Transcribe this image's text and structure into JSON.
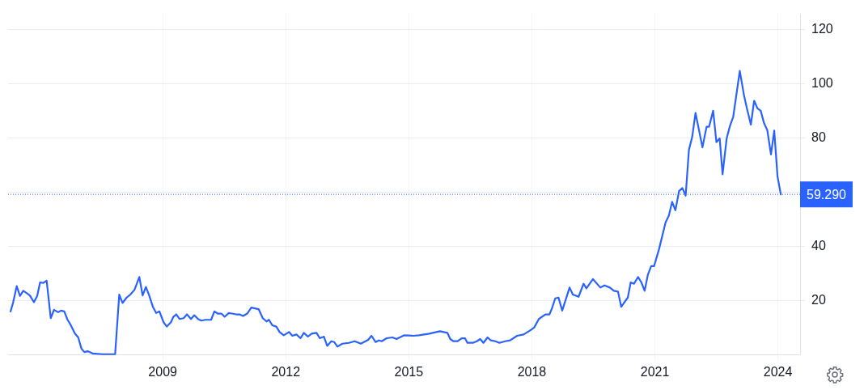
{
  "chart_data": {
    "type": "line",
    "xlim": [
      2005.23,
      2024.54
    ],
    "xticks": [
      2009,
      2012,
      2015,
      2018,
      2021,
      2024
    ],
    "ylim": [
      0,
      125.7
    ],
    "yticks": [
      20,
      40,
      {
        "value": 60,
        "label": null
      },
      80,
      100,
      120
    ],
    "grid": true,
    "legend": false,
    "marker": "none",
    "line_style": "solid",
    "ref_lines": [
      {
        "axis": "y",
        "value": 59.29,
        "label": "59.290",
        "color": "#2962ff",
        "line_style": "dotted"
      }
    ],
    "series": [
      {
        "color": "#2962ff",
        "x": [
          2005.29,
          2005.35,
          2005.44,
          2005.52,
          2005.6,
          2005.68,
          2005.76,
          2005.86,
          2005.94,
          2006.01,
          2006.09,
          2006.17,
          2006.27,
          2006.35,
          2006.45,
          2006.52,
          2006.6,
          2006.68,
          2006.76,
          2006.86,
          2006.94,
          2007.02,
          2007.09,
          2007.17,
          2007.29,
          2007.53,
          2007.84,
          2007.94,
          2008.02,
          2008.12,
          2008.21,
          2008.31,
          2008.43,
          2008.51,
          2008.59,
          2008.67,
          2008.76,
          2008.84,
          2008.92,
          2009.02,
          2009.1,
          2009.2,
          2009.26,
          2009.33,
          2009.41,
          2009.51,
          2009.59,
          2009.69,
          2009.77,
          2009.86,
          2009.94,
          2010.04,
          2010.18,
          2010.26,
          2010.34,
          2010.43,
          2010.51,
          2010.61,
          2010.69,
          2010.79,
          2010.87,
          2010.96,
          2011.06,
          2011.16,
          2011.34,
          2011.44,
          2011.53,
          2011.59,
          2011.67,
          2011.77,
          2011.85,
          2011.95,
          2012.08,
          2012.16,
          2012.26,
          2012.36,
          2012.44,
          2012.54,
          2012.63,
          2012.75,
          2012.83,
          2012.93,
          2013.01,
          2013.11,
          2013.18,
          2013.26,
          2013.38,
          2013.54,
          2013.68,
          2013.83,
          2014.01,
          2014.09,
          2014.19,
          2014.27,
          2014.34,
          2014.46,
          2014.6,
          2014.7,
          2014.89,
          2015.11,
          2015.25,
          2015.5,
          2015.76,
          2015.94,
          2016.01,
          2016.09,
          2016.19,
          2016.29,
          2016.37,
          2016.43,
          2016.56,
          2016.66,
          2016.74,
          2016.82,
          2016.92,
          2017.0,
          2017.11,
          2017.21,
          2017.35,
          2017.47,
          2017.64,
          2017.8,
          2017.98,
          2018.06,
          2018.17,
          2018.33,
          2018.43,
          2018.49,
          2018.57,
          2018.65,
          2018.74,
          2018.92,
          2019.0,
          2019.14,
          2019.26,
          2019.33,
          2019.49,
          2019.67,
          2019.77,
          2019.9,
          2020.0,
          2020.1,
          2020.18,
          2020.34,
          2020.41,
          2020.49,
          2020.59,
          2020.67,
          2020.75,
          2020.83,
          2020.91,
          2020.98,
          2021.1,
          2021.26,
          2021.34,
          2021.42,
          2021.5,
          2021.59,
          2021.67,
          2021.75,
          2021.83,
          2021.91,
          2021.99,
          2022.16,
          2022.26,
          2022.32,
          2022.42,
          2022.5,
          2022.58,
          2022.65,
          2022.75,
          2022.83,
          2022.91,
          2023.07,
          2023.17,
          2023.24,
          2023.34,
          2023.42,
          2023.5,
          2023.58,
          2023.66,
          2023.74,
          2023.83,
          2023.91,
          2023.99,
          2024.07
        ],
        "values": [
          16.1,
          19.2,
          25.4,
          21.8,
          23.7,
          22.9,
          22.0,
          19.5,
          21.8,
          26.8,
          26.6,
          27.4,
          13.6,
          16.7,
          15.8,
          16.4,
          16.1,
          13.0,
          11.0,
          7.9,
          6.5,
          2.3,
          1.1,
          1.4,
          0.6,
          0.3,
          0.3,
          22.3,
          19.2,
          21.2,
          22.3,
          24.0,
          28.8,
          22.0,
          25.1,
          22.0,
          17.8,
          15.5,
          16.1,
          12.1,
          10.5,
          12.1,
          14.1,
          15.0,
          13.3,
          13.6,
          15.0,
          13.3,
          14.7,
          13.3,
          12.7,
          13.0,
          13.0,
          16.1,
          15.3,
          15.3,
          14.1,
          15.5,
          15.3,
          15.0,
          15.0,
          14.4,
          15.3,
          17.5,
          16.9,
          13.6,
          12.4,
          13.0,
          11.0,
          10.5,
          8.5,
          7.3,
          8.5,
          7.1,
          7.6,
          6.2,
          8.2,
          6.8,
          7.9,
          8.2,
          6.2,
          6.8,
          3.4,
          5.1,
          4.8,
          3.1,
          4.2,
          4.5,
          5.1,
          4.2,
          5.6,
          7.1,
          4.8,
          5.4,
          5.1,
          6.2,
          6.5,
          5.9,
          7.3,
          7.1,
          7.3,
          7.9,
          8.8,
          8.2,
          5.9,
          5.1,
          5.1,
          6.2,
          6.2,
          4.5,
          4.5,
          5.1,
          5.9,
          4.5,
          6.5,
          5.4,
          5.1,
          4.5,
          5.1,
          5.4,
          7.1,
          7.6,
          9.3,
          10.2,
          13.3,
          15.0,
          15.0,
          17.2,
          20.9,
          21.2,
          16.4,
          24.9,
          22.3,
          21.5,
          26.3,
          24.6,
          28.0,
          24.9,
          25.7,
          24.9,
          23.7,
          23.4,
          17.8,
          21.2,
          26.8,
          26.3,
          28.8,
          26.8,
          23.7,
          29.7,
          32.8,
          32.8,
          39.0,
          48.9,
          51.4,
          56.5,
          53.4,
          60.5,
          61.6,
          58.8,
          75.7,
          80.5,
          89.3,
          76.6,
          84.2,
          84.2,
          90.1,
          78.5,
          79.9,
          66.7,
          79.9,
          84.5,
          87.9,
          104.8,
          96.0,
          91.2,
          85.0,
          93.8,
          91.0,
          90.1,
          85.6,
          83.0,
          74.0,
          82.8,
          65.8,
          59.29
        ]
      }
    ]
  }
}
